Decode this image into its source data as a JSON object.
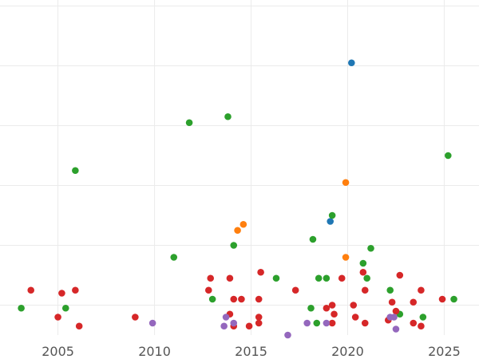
{
  "chart_data": {
    "type": "scatter",
    "title": "",
    "xlabel": "",
    "ylabel": "",
    "xlim": [
      2002.0,
      2026.8
    ],
    "ylim": [
      0,
      112
    ],
    "x_ticks": [
      2005,
      2010,
      2015,
      2020,
      2025
    ],
    "x_tick_labels": [
      "2005",
      "2010",
      "2015",
      "2020",
      "2025"
    ],
    "y_grid": [
      10,
      30,
      50,
      70,
      90,
      110
    ],
    "grid": true,
    "legend": "none",
    "series": [
      {
        "color": "#1f77b4",
        "points": [
          {
            "x": 2020.2,
            "y": 91
          },
          {
            "x": 2019.1,
            "y": 38
          }
        ]
      },
      {
        "color": "#ff7f0e",
        "points": [
          {
            "x": 2019.9,
            "y": 51
          },
          {
            "x": 2014.6,
            "y": 37
          },
          {
            "x": 2014.3,
            "y": 35
          },
          {
            "x": 2019.9,
            "y": 26
          }
        ]
      },
      {
        "color": "#2ca02c",
        "points": [
          {
            "x": 2011.8,
            "y": 71
          },
          {
            "x": 2013.8,
            "y": 73
          },
          {
            "x": 2005.9,
            "y": 55
          },
          {
            "x": 2025.2,
            "y": 60
          },
          {
            "x": 2019.2,
            "y": 40
          },
          {
            "x": 2011.0,
            "y": 26
          },
          {
            "x": 2014.1,
            "y": 30
          },
          {
            "x": 2018.2,
            "y": 32
          },
          {
            "x": 2021.2,
            "y": 29
          },
          {
            "x": 2020.8,
            "y": 24
          },
          {
            "x": 2003.1,
            "y": 9
          },
          {
            "x": 2005.4,
            "y": 9
          },
          {
            "x": 2013.0,
            "y": 12
          },
          {
            "x": 2016.3,
            "y": 19
          },
          {
            "x": 2018.5,
            "y": 19
          },
          {
            "x": 2018.9,
            "y": 19
          },
          {
            "x": 2021.0,
            "y": 19
          },
          {
            "x": 2022.2,
            "y": 15
          },
          {
            "x": 2018.1,
            "y": 9
          },
          {
            "x": 2018.4,
            "y": 4
          },
          {
            "x": 2022.7,
            "y": 7
          },
          {
            "x": 2023.9,
            "y": 6
          },
          {
            "x": 2025.5,
            "y": 12
          }
        ]
      },
      {
        "color": "#d62728",
        "points": [
          {
            "x": 2003.6,
            "y": 15
          },
          {
            "x": 2005.2,
            "y": 14
          },
          {
            "x": 2005.9,
            "y": 15
          },
          {
            "x": 2005.0,
            "y": 6
          },
          {
            "x": 2006.1,
            "y": 3
          },
          {
            "x": 2009.0,
            "y": 6
          },
          {
            "x": 2012.9,
            "y": 19
          },
          {
            "x": 2012.8,
            "y": 15
          },
          {
            "x": 2013.9,
            "y": 19
          },
          {
            "x": 2014.1,
            "y": 12
          },
          {
            "x": 2014.5,
            "y": 12
          },
          {
            "x": 2013.9,
            "y": 7
          },
          {
            "x": 2014.1,
            "y": 3
          },
          {
            "x": 2014.9,
            "y": 3
          },
          {
            "x": 2015.4,
            "y": 12
          },
          {
            "x": 2015.5,
            "y": 21
          },
          {
            "x": 2015.4,
            "y": 6
          },
          {
            "x": 2015.4,
            "y": 4
          },
          {
            "x": 2017.3,
            "y": 15
          },
          {
            "x": 2019.7,
            "y": 19
          },
          {
            "x": 2018.9,
            "y": 9
          },
          {
            "x": 2019.2,
            "y": 10
          },
          {
            "x": 2019.3,
            "y": 7
          },
          {
            "x": 2019.2,
            "y": 4
          },
          {
            "x": 2020.3,
            "y": 10
          },
          {
            "x": 2020.4,
            "y": 6
          },
          {
            "x": 2020.9,
            "y": 4
          },
          {
            "x": 2020.9,
            "y": 15
          },
          {
            "x": 2020.8,
            "y": 21
          },
          {
            "x": 2022.3,
            "y": 11
          },
          {
            "x": 2022.5,
            "y": 8
          },
          {
            "x": 2022.7,
            "y": 20
          },
          {
            "x": 2023.4,
            "y": 11
          },
          {
            "x": 2023.8,
            "y": 15
          },
          {
            "x": 2022.1,
            "y": 5
          },
          {
            "x": 2023.4,
            "y": 4
          },
          {
            "x": 2023.8,
            "y": 3
          },
          {
            "x": 2024.9,
            "y": 12
          }
        ]
      },
      {
        "color": "#9467bd",
        "points": [
          {
            "x": 2009.9,
            "y": 4
          },
          {
            "x": 2013.7,
            "y": 6
          },
          {
            "x": 2013.6,
            "y": 3
          },
          {
            "x": 2014.1,
            "y": 4
          },
          {
            "x": 2016.9,
            "y": 0
          },
          {
            "x": 2017.9,
            "y": 4
          },
          {
            "x": 2018.9,
            "y": 4
          },
          {
            "x": 2022.2,
            "y": 6
          },
          {
            "x": 2022.4,
            "y": 6
          },
          {
            "x": 2022.5,
            "y": 2
          }
        ]
      }
    ]
  }
}
